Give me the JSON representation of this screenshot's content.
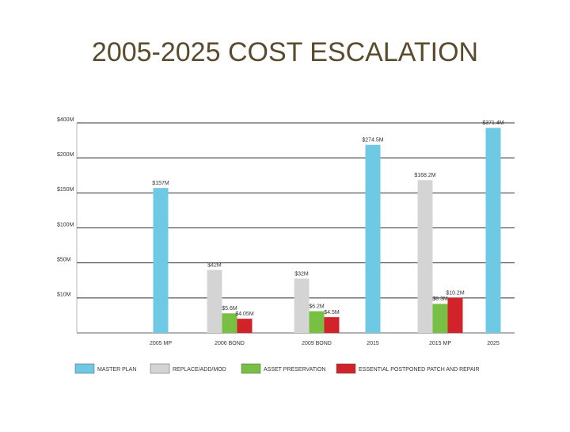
{
  "chart_data": {
    "type": "bar",
    "title": "2005-2025 COST ESCALATION",
    "categories": [
      "2005 MP",
      "2006 BOND",
      "2009 BOND",
      "2015",
      "2015 MP",
      "2025"
    ],
    "series": [
      {
        "name": "MASTER PLAN",
        "color": "#6ecae4",
        "values": [
          157,
          null,
          null,
          274.5,
          null,
          371.4
        ],
        "value_labels": [
          "$157M",
          null,
          null,
          "$274.5M",
          null,
          "$371.4M"
        ]
      },
      {
        "name": "REPLACE/ADD/MOD",
        "color": "#d4d4d4",
        "values": [
          null,
          42,
          32,
          null,
          168.2,
          null
        ],
        "value_labels": [
          null,
          "$42M",
          "$32M",
          null,
          "$168.2M",
          null
        ]
      },
      {
        "name": "ASSET PRESERVATION",
        "color": "#77c043",
        "values": [
          null,
          5.6,
          6.2,
          null,
          8.3,
          null
        ],
        "value_labels": [
          null,
          "$5.6M",
          "$6.2M",
          null,
          "$8.3M",
          null
        ]
      },
      {
        "name": "ESSENTIAL POSTPONED PATCH AND REPAIR",
        "color": "#d2232a",
        "values": [
          null,
          4.05,
          4.5,
          null,
          10.2,
          null
        ],
        "value_labels": [
          null,
          "$4.05M",
          "$4.5M",
          null,
          "$10.2M",
          null
        ]
      }
    ],
    "ylim": [
      0,
      400
    ],
    "yticks": [
      {
        "value": 10,
        "label": "$10M"
      },
      {
        "value": 50,
        "label": "$50M"
      },
      {
        "value": 100,
        "label": "$100M"
      },
      {
        "value": 150,
        "label": "$150M"
      },
      {
        "value": 200,
        "label": "$200M"
      },
      {
        "value": 400,
        "label": "$400M"
      }
    ],
    "grid": true
  }
}
